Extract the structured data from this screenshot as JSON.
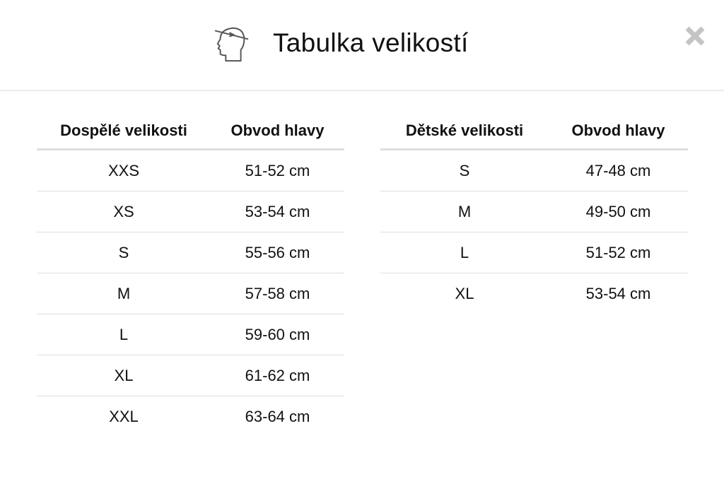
{
  "header": {
    "title": "Tabulka velikostí",
    "icon": "head-measure-icon",
    "close_icon": "close-icon"
  },
  "adult": {
    "headers": [
      "Dospělé velikosti",
      "Obvod hlavy"
    ],
    "rows": [
      [
        "XXS",
        "51-52 cm"
      ],
      [
        "XS",
        "53-54 cm"
      ],
      [
        "S",
        "55-56 cm"
      ],
      [
        "M",
        "57-58 cm"
      ],
      [
        "L",
        "59-60 cm"
      ],
      [
        "XL",
        "61-62 cm"
      ],
      [
        "XXL",
        "63-64 cm"
      ]
    ]
  },
  "kids": {
    "headers": [
      "Dětské velikosti",
      "Obvod hlavy"
    ],
    "rows": [
      [
        "S",
        "47-48 cm"
      ],
      [
        "M",
        "49-50 cm"
      ],
      [
        "L",
        "51-52 cm"
      ],
      [
        "XL",
        "53-54 cm"
      ]
    ]
  }
}
